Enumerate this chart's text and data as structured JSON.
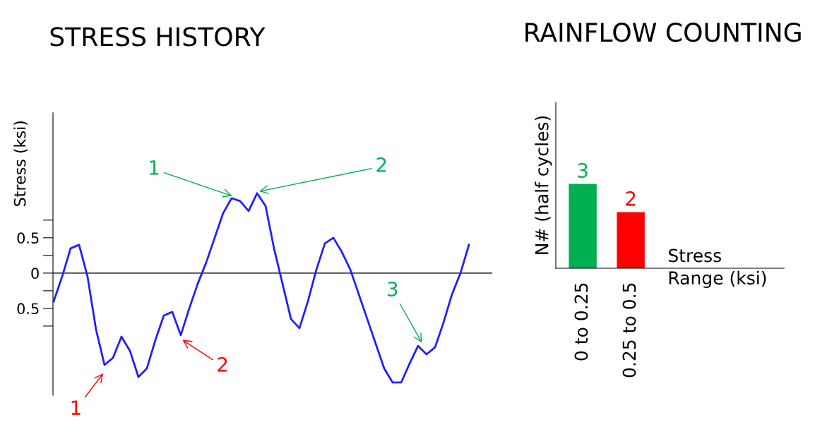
{
  "chart_data": [
    {
      "type": "line",
      "title": "STRESS HISTORY",
      "ylabel": "Stress (ksi)",
      "categories": [
        null,
        null,
        null,
        null,
        null,
        null,
        null,
        null,
        null,
        null,
        null,
        null,
        null,
        null,
        null,
        null,
        null,
        null,
        null,
        null,
        null,
        null,
        null,
        null,
        null,
        null,
        null,
        null,
        null,
        null,
        null,
        null,
        null,
        null,
        null,
        null,
        null,
        null,
        null,
        null,
        null,
        null,
        null,
        null,
        null,
        null,
        null,
        null,
        null,
        null
      ],
      "series": [
        {
          "color": "#1f1fff",
          "values": [
            -0.4,
            -0.05,
            0.35,
            0.4,
            -0.05,
            -0.8,
            -1.3,
            -1.2,
            -0.9,
            -1.1,
            -1.47,
            -1.35,
            -0.95,
            -0.6,
            -0.55,
            -0.88,
            -0.5,
            -0.15,
            0.15,
            0.5,
            0.85,
            1.06,
            1.02,
            0.88,
            1.13,
            0.95,
            0.35,
            -0.15,
            -0.65,
            -0.78,
            -0.4,
            0.05,
            0.42,
            0.5,
            0.3,
            0.05,
            -0.3,
            -0.65,
            -1.0,
            -1.35,
            -1.55,
            -1.55,
            -1.28,
            -1.03,
            -1.15,
            -1.05,
            -0.7,
            -0.3,
            0.0,
            0.4
          ]
        }
      ],
      "ylim": [
        -1.73,
        2.27
      ],
      "yticks": [
        {
          "value": 0.75,
          "label": null
        },
        0.5,
        {
          "value": 0.25,
          "label": null
        },
        0,
        {
          "value": -0.25,
          "label": null
        },
        {
          "value": -0.5,
          "label": "0.5"
        },
        {
          "value": -0.75,
          "label": null
        }
      ],
      "tick_labels": "y",
      "grid": false,
      "legend": false,
      "ref_lines": [
        {
          "axis": "y",
          "value": 0,
          "color": "#404040"
        }
      ],
      "annotations": [
        "1",
        "2",
        "3",
        "1",
        "2"
      ]
    },
    {
      "type": "bar",
      "title": "RAINFLOW COUNTING",
      "ylabel": "N# (half cycles)",
      "xlabel": "Stress\nRange (ksi)",
      "categories": [
        "0 to 0.25",
        "0.25 to 0.5"
      ],
      "values": [
        3,
        2
      ],
      "colors": [
        "#00b050",
        "#ff0000"
      ],
      "ylim": [
        0,
        5.9
      ],
      "data_labels": true,
      "tick_labels": "x",
      "grid": false,
      "legend": false
    }
  ]
}
